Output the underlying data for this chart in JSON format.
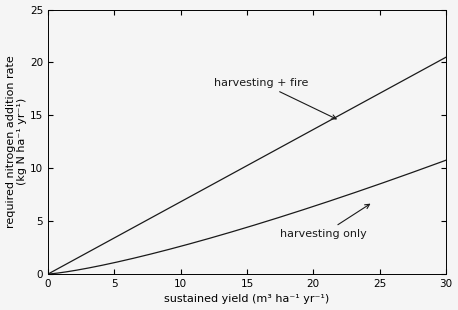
{
  "xlim": [
    0,
    30
  ],
  "ylim": [
    0,
    25
  ],
  "xticks": [
    0,
    5,
    10,
    15,
    20,
    25,
    30
  ],
  "yticks": [
    0,
    5,
    10,
    15,
    20,
    25
  ],
  "xlabel": "sustained yield (m³ ha⁻¹ yr⁻¹)",
  "ylabel_line1": "required nitrogen addition rate",
  "ylabel_line2": "(kg N ha⁻¹ yr⁻¹)",
  "line_color": "#1a1a1a",
  "background_color": "#f5f5f5",
  "annotation_fire": "harvesting + fire",
  "annotation_harvest": "harvesting only",
  "fire_slope": 0.683,
  "harvest_a": 0.0089,
  "harvest_b": 2.0,
  "harvest_c": 0.175,
  "harvest_pow": 1.55,
  "tick_fontsize": 7.5,
  "label_fontsize": 8,
  "annot_fontsize": 8
}
